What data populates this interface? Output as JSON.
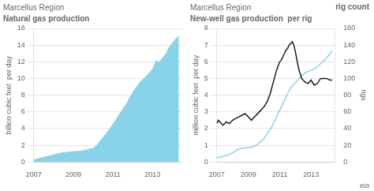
{
  "chart_data": [
    {
      "type": "area",
      "title": "Marcellus Region",
      "subtitle": "Natural gas production",
      "ylabel": "billion cubic feet  per day",
      "x": [
        2007.0,
        2007.17,
        2007.33,
        2007.5,
        2007.67,
        2007.83,
        2008.0,
        2008.17,
        2008.33,
        2008.5,
        2008.67,
        2008.83,
        2009.0,
        2009.17,
        2009.33,
        2009.5,
        2009.67,
        2009.83,
        2010.0,
        2010.17,
        2010.33,
        2010.5,
        2010.67,
        2010.83,
        2011.0,
        2011.17,
        2011.33,
        2011.5,
        2011.67,
        2011.83,
        2012.0,
        2012.17,
        2012.33,
        2012.5,
        2012.67,
        2012.83,
        2013.0,
        2013.17,
        2013.33,
        2013.5,
        2013.67,
        2013.83,
        2014.0,
        2014.17,
        2014.33
      ],
      "values": [
        0.3,
        0.4,
        0.5,
        0.6,
        0.7,
        0.8,
        0.9,
        1.0,
        1.1,
        1.15,
        1.2,
        1.25,
        1.3,
        1.3,
        1.35,
        1.4,
        1.5,
        1.6,
        1.7,
        2.0,
        2.5,
        3.0,
        3.5,
        4.0,
        4.6,
        5.2,
        5.8,
        6.4,
        7.0,
        7.7,
        8.4,
        9.0,
        9.5,
        9.9,
        10.3,
        10.7,
        11.2,
        12.2,
        12.0,
        12.5,
        13.0,
        13.8,
        14.3,
        14.8,
        15.2
      ],
      "color": "#87d4ea",
      "xlim": [
        2007,
        2014.5
      ],
      "xticks": [
        2007,
        2009,
        2011,
        2013
      ],
      "ylim": [
        0,
        16
      ],
      "yticks": [
        0,
        2,
        4,
        6,
        8,
        10,
        12,
        14,
        16
      ],
      "grid": true
    },
    {
      "type": "line",
      "title": "Marcellus Region",
      "subtitle": "New-well gas production  per rig",
      "ylabel": "million cubic feet  per day",
      "y2label": "rigs",
      "annotations": [
        "rig count",
        "eia"
      ],
      "series": [
        {
          "x": [
            2007.0,
            2007.1,
            2007.2,
            2007.4,
            2007.6,
            2007.8,
            2008.0,
            2008.2,
            2008.4,
            2008.6,
            2008.8,
            2009.0,
            2009.2,
            2009.4,
            2009.6,
            2009.8,
            2010.0,
            2010.2,
            2010.4,
            2010.6,
            2010.8,
            2011.0,
            2011.1,
            2011.2,
            2011.3,
            2011.4,
            2011.5,
            2011.6,
            2011.7,
            2011.8,
            2011.9,
            2012.0,
            2012.1,
            2012.2,
            2012.4,
            2012.6,
            2012.8,
            2013.0,
            2013.2,
            2013.4,
            2013.6,
            2013.8,
            2014.0,
            2014.2,
            2014.33
          ],
          "values": [
            2.3,
            2.5,
            2.4,
            2.2,
            2.4,
            2.3,
            2.5,
            2.6,
            2.7,
            2.8,
            2.9,
            2.7,
            2.5,
            2.7,
            2.9,
            3.1,
            3.3,
            3.6,
            4.1,
            4.8,
            5.5,
            6.0,
            6.1,
            6.3,
            6.5,
            6.7,
            6.8,
            7.0,
            7.1,
            7.2,
            7.0,
            6.6,
            6.1,
            5.6,
            5.0,
            4.8,
            4.7,
            4.9,
            4.6,
            4.7,
            5.0,
            5.0,
            5.0,
            4.9,
            4.9
          ],
          "color": "#1a1a1a"
        },
        {
          "x": [
            2007.0,
            2007.25,
            2007.5,
            2007.75,
            2008.0,
            2008.25,
            2008.5,
            2008.75,
            2009.0,
            2009.25,
            2009.5,
            2009.75,
            2010.0,
            2010.25,
            2010.5,
            2010.75,
            2011.0,
            2011.25,
            2011.5,
            2011.75,
            2012.0,
            2012.25,
            2012.5,
            2012.75,
            2013.0,
            2013.25,
            2013.5,
            2013.75,
            2014.0,
            2014.33
          ],
          "values": [
            5,
            6,
            7,
            9,
            11,
            14,
            16,
            17,
            17,
            18,
            20,
            24,
            28,
            35,
            42,
            52,
            62,
            72,
            82,
            90,
            95,
            100,
            105,
            108,
            110,
            112,
            116,
            120,
            125,
            133
          ],
          "color": "#87d4ea",
          "axis": "y2"
        }
      ],
      "xlim": [
        2007,
        2014.5
      ],
      "xticks": [
        2007,
        2009,
        2011,
        2013
      ],
      "ylim": [
        0,
        8
      ],
      "yticks": [
        0,
        1,
        2,
        3,
        4,
        5,
        6,
        7,
        8
      ],
      "y2lim": [
        0,
        160
      ],
      "y2ticks": [
        0,
        20,
        40,
        60,
        80,
        100,
        120,
        140,
        160
      ],
      "grid": true
    }
  ]
}
